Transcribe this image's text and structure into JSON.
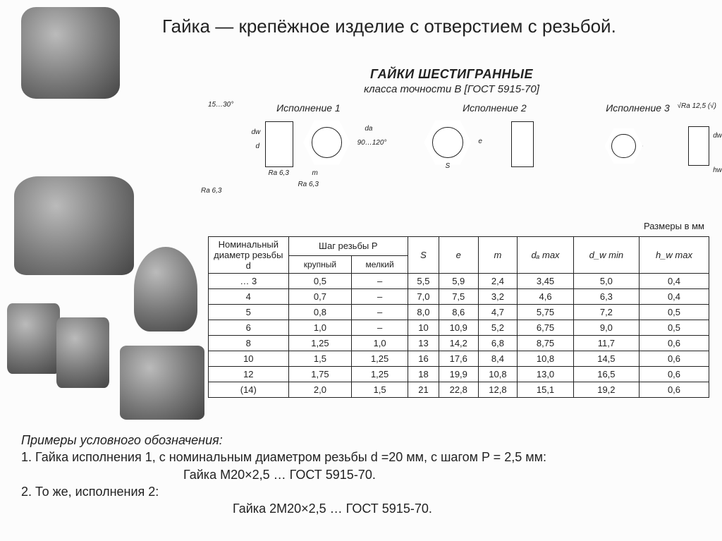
{
  "page_title": "Гайка — крепёжное изделие с отверстием с резьбой.",
  "tech": {
    "title1": "ГАЙКИ ШЕСТИГРАННЫЕ",
    "title2": "класса точности В [ГОСТ 5915-70]",
    "exec1": "Исполнение 1",
    "exec2": "Исполнение 2",
    "exec3": "Исполнение 3",
    "angle_chamfer": "15…30°",
    "angle_cone": "90…120°",
    "ra63": "Ra 6,3",
    "ra125": "√Ra 12,5 (√)",
    "dim_dw": "dw",
    "dim_d": "d",
    "dim_da": "da",
    "dim_m": "m",
    "dim_e": "e",
    "dim_S": "S",
    "dim_hw": "hw",
    "dims_note": "Размеры в мм"
  },
  "table": {
    "headers": {
      "nominal": "Номинальный диаметр резьбы  d",
      "pitch_group": "Шаг резьбы P",
      "pitch_coarse": "крупный",
      "pitch_fine": "мелкий",
      "S": "S",
      "e": "e",
      "m": "m",
      "da": "dₐ max",
      "dw": "d_w min",
      "hw": "h_w max"
    },
    "rows": [
      [
        "… 3",
        "0,5",
        "–",
        "5,5",
        "5,9",
        "2,4",
        "3,45",
        "5,0",
        "0,4"
      ],
      [
        "4",
        "0,7",
        "–",
        "7,0",
        "7,5",
        "3,2",
        "4,6",
        "6,3",
        "0,4"
      ],
      [
        "5",
        "0,8",
        "–",
        "8,0",
        "8,6",
        "4,7",
        "5,75",
        "7,2",
        "0,5"
      ],
      [
        "6",
        "1,0",
        "–",
        "10",
        "10,9",
        "5,2",
        "6,75",
        "9,0",
        "0,5"
      ],
      [
        "8",
        "1,25",
        "1,0",
        "13",
        "14,2",
        "6,8",
        "8,75",
        "11,7",
        "0,6"
      ],
      [
        "10",
        "1,5",
        "1,25",
        "16",
        "17,6",
        "8,4",
        "10,8",
        "14,5",
        "0,6"
      ],
      [
        "12",
        "1,75",
        "1,25",
        "18",
        "19,9",
        "10,8",
        "13,0",
        "16,5",
        "0,6"
      ],
      [
        "(14)",
        "2,0",
        "1,5",
        "21",
        "22,8",
        "12,8",
        "15,1",
        "19,2",
        "0,6"
      ]
    ],
    "col_widths_pct": [
      16,
      9,
      9,
      9,
      9,
      9,
      9,
      9,
      9
    ],
    "font_size_pt": 10,
    "border_color": "#222222",
    "bg_color": "#ffffff"
  },
  "bottom": {
    "t1": "Примеры условного обозначения:",
    "t2": "1.    Гайка исполнения 1, с номинальным диаметром резьбы d =20 мм, с шагом P = 2,5 мм:",
    "t3": "Гайка М20×2,5 … ГОСТ 5915-70.",
    "t4": "2. То же, исполнения 2:",
    "t5": "Гайка 2М20×2,5 … ГОСТ 5915-70."
  },
  "images": {
    "nut1_alt": "hex-nut-photo",
    "nut2_alt": "castle-nut-photo",
    "nut3_alt": "eye-nut-photo",
    "nut4_alt": "cap-nut-photo",
    "nut5_alt": "cap-nut-photo-2",
    "nut6_alt": "square-nut-photo"
  },
  "styling": {
    "page_bg": "#fcfcfc",
    "text_color": "#222222",
    "title_fontsize_pt": 20,
    "tech_title_fontsize_pt": 14,
    "body_fontsize_pt": 14,
    "font_family": "Arial"
  }
}
